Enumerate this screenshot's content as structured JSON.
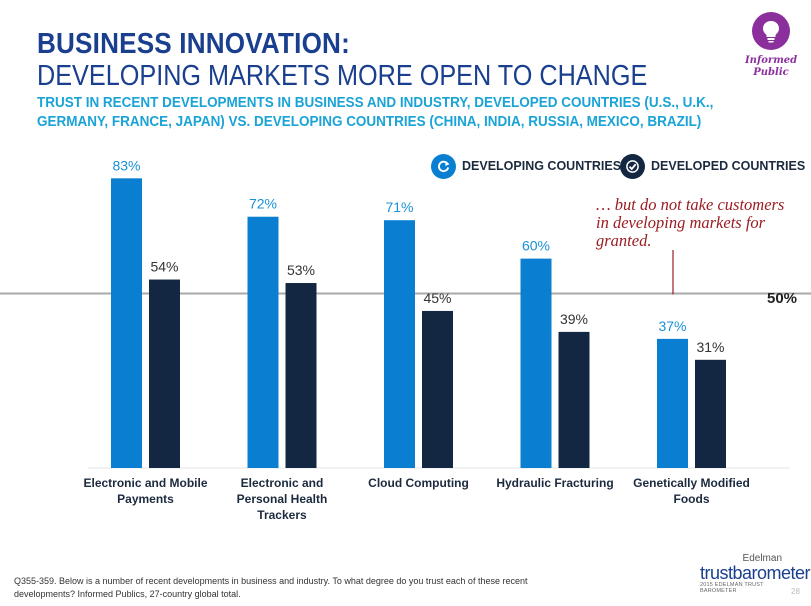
{
  "header": {
    "title_line1": "BUSINESS INNOVATION:",
    "title_line2": "DEVELOPING MARKETS MORE OPEN TO CHANGE",
    "subtitle": "TRUST IN RECENT DEVELOPMENTS IN BUSINESS AND INDUSTRY, DEVELOPED COUNTRIES (U.S., U.K., GERMANY, FRANCE, JAPAN) VS. DEVELOPING COUNTRIES (CHINA, INDIA, RUSSIA, MEXICO, BRAZIL)"
  },
  "badge": {
    "line1": "Informed",
    "line2": "Public",
    "icon": "lightbulb-icon",
    "color": "#8a2f9b"
  },
  "legend": {
    "developing": {
      "label": "DEVELOPING COUNTRIES",
      "icon": "refresh-icon",
      "color": "#0a7fd1"
    },
    "developed": {
      "label": "DEVELOPED COUNTRIES",
      "icon": "checkmark-icon",
      "color": "#132743"
    }
  },
  "annotation": "… but do not take customers in developing markets for granted.",
  "reference_line": {
    "value": 50,
    "label": "50%"
  },
  "chart_data": {
    "type": "bar",
    "categories": [
      [
        "Electronic and Mobile",
        "Payments"
      ],
      [
        "Electronic and",
        "Personal Health",
        "Trackers"
      ],
      [
        "Cloud Computing"
      ],
      [
        "Hydraulic Fracturing"
      ],
      [
        "Genetically Modified",
        "Foods"
      ]
    ],
    "series": [
      {
        "name": "DEVELOPING COUNTRIES",
        "values": [
          83,
          72,
          71,
          60,
          37
        ],
        "color": "#0a7fd1",
        "label_color": "#1a8fd6"
      },
      {
        "name": "DEVELOPED COUNTRIES",
        "values": [
          54,
          53,
          45,
          39,
          31
        ],
        "color": "#132743",
        "label_color": "#333333"
      }
    ],
    "ylim": [
      0,
      100
    ],
    "value_suffix": "%",
    "grid": false
  },
  "footnote": "Q355-359. Below is a number of recent developments in business and industry. To what degree do you trust each of these recent developments? Informed Publics, 27-country global total.",
  "logo": {
    "brand": "Edelman",
    "name": "trustbarometer",
    "study": "2015 EDELMAN TRUST BAROMETER"
  },
  "page_number": "28"
}
